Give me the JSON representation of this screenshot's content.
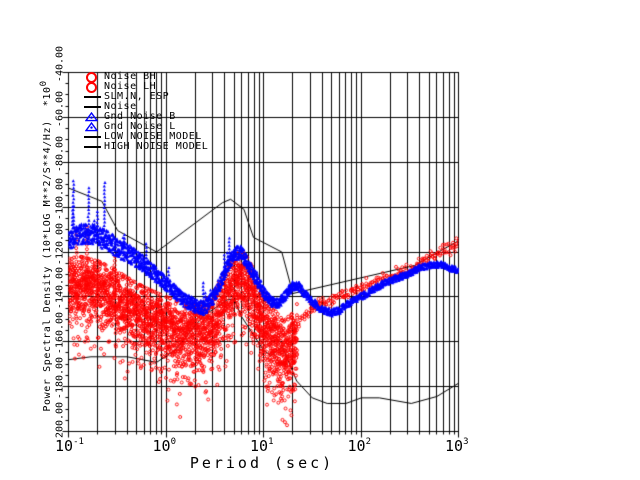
{
  "colors": {
    "background": "#ffffff",
    "frame": "#000000",
    "red_series": "#ff0000",
    "blue_series": "#0000ff",
    "model_line": "#000000"
  },
  "legend": {
    "items": [
      {
        "label": "Noise BH",
        "marker": "circle",
        "color": "#ff0000"
      },
      {
        "label": "Noise LH",
        "marker": "circle",
        "color": "#ff0000"
      },
      {
        "label": "SLM.N, ESP",
        "marker": "line",
        "color": "#000000"
      },
      {
        "label": "Noise",
        "marker": "line",
        "color": "#000000"
      },
      {
        "label": "Gnd Noise B",
        "marker": "triangle",
        "color": "#0000ff"
      },
      {
        "label": "Gnd Noise L",
        "marker": "triangle",
        "color": "#0000ff"
      },
      {
        "label": "LOW NOISE MODEL",
        "marker": "line",
        "color": "#000000"
      },
      {
        "label": "HIGH NOISE MODEL",
        "marker": "line",
        "color": "#000000"
      }
    ]
  },
  "axes": {
    "x": {
      "title": "Period (sec)",
      "scale": "log",
      "min": 0.1,
      "max": 1000,
      "ticks": [
        {
          "base": "10",
          "exp": "-1"
        },
        {
          "base": "10",
          "exp": "0"
        },
        {
          "base": "10",
          "exp": "1"
        },
        {
          "base": "10",
          "exp": "2"
        },
        {
          "base": "10",
          "exp": "3"
        }
      ]
    },
    "y": {
      "title": "Power Spectral Density (10*LOG M**2/S**4/Hz)",
      "scale_base": "*10",
      "scale_exp": "0",
      "min": -200,
      "max": -40,
      "tick_values": [
        -40,
        -60,
        -80,
        -100,
        -120,
        -140,
        -160,
        -180,
        -200
      ],
      "tick_labels": [
        "-40.00",
        "-60.00",
        "-80.00",
        "-100.00",
        "-120.00",
        "-140.00",
        "-160.00",
        "-180.00",
        "-200.00"
      ],
      "grid_values": [
        -60,
        -80,
        -100,
        -120,
        -140,
        -160,
        -180
      ]
    }
  },
  "chart_data": {
    "type": "scatter",
    "xlabel": "Period (sec)",
    "ylabel": "Power Spectral Density (10*LOG M**2/S**4/Hz)",
    "x_scale": "log",
    "xlim": [
      0.1,
      1000
    ],
    "ylim": [
      -200,
      -40
    ],
    "grid": true,
    "legend_position": "top-left",
    "series": [
      {
        "name": "Noise BH / Noise LH",
        "type": "scatter-cloud",
        "color": "#ff0000",
        "marker": "open-circle",
        "center_db_by_period": [
          [
            0.08,
            -134
          ],
          [
            0.1,
            -135
          ],
          [
            0.13,
            -134
          ],
          [
            0.2,
            -136
          ],
          [
            0.3,
            -140
          ],
          [
            0.5,
            -146
          ],
          [
            0.7,
            -149
          ],
          [
            1.0,
            -152
          ],
          [
            1.5,
            -155
          ],
          [
            2.2,
            -156
          ],
          [
            3.0,
            -151
          ],
          [
            4.0,
            -141
          ],
          [
            5.0,
            -133
          ],
          [
            6.0,
            -131
          ],
          [
            7.0,
            -135
          ],
          [
            8.0,
            -141
          ],
          [
            10,
            -150
          ],
          [
            13,
            -158
          ],
          [
            16,
            -163
          ],
          [
            20,
            -159
          ],
          [
            24,
            -151
          ],
          [
            30,
            -146
          ],
          [
            40,
            -142.5
          ],
          [
            50,
            -141
          ],
          [
            70,
            -139
          ],
          [
            100,
            -136
          ],
          [
            150,
            -132.5
          ],
          [
            200,
            -131
          ],
          [
            300,
            -128
          ],
          [
            400,
            -125
          ],
          [
            600,
            -121
          ],
          [
            800,
            -118
          ],
          [
            1000,
            -115.5
          ]
        ],
        "dense_until_period": 22,
        "sigma_db": 6.5,
        "up_clamp_db": 12,
        "down_clamp_db": 16,
        "tail_db": [
          6,
          12
        ],
        "deep_tail_range": [
          9,
          26
        ],
        "deep_tail_db": [
          5,
          13
        ],
        "tight_sigma_db": 1.1,
        "spikes": {
          "pmin": 0.09,
          "pmax": 0.3,
          "prob": 0.1,
          "max_db": 28,
          "cap_db": -100
        }
      },
      {
        "name": "Gnd Noise B / Gnd Noise L",
        "type": "scatter-band",
        "color": "#0000ff",
        "marker": "triangle",
        "center_db_by_period": [
          [
            0.08,
            -116
          ],
          [
            0.1,
            -115
          ],
          [
            0.13,
            -112
          ],
          [
            0.18,
            -112
          ],
          [
            0.25,
            -115
          ],
          [
            0.35,
            -119
          ],
          [
            0.5,
            -123
          ],
          [
            0.7,
            -128
          ],
          [
            1.0,
            -134
          ],
          [
            1.5,
            -141
          ],
          [
            2.0,
            -144
          ],
          [
            2.5,
            -145
          ],
          [
            3.2,
            -139
          ],
          [
            4.0,
            -129
          ],
          [
            5.0,
            -121
          ],
          [
            5.8,
            -120
          ],
          [
            6.5,
            -123
          ],
          [
            7.5,
            -128
          ],
          [
            8.5,
            -132
          ],
          [
            10,
            -138
          ],
          [
            12,
            -142
          ],
          [
            14,
            -143
          ],
          [
            17,
            -139
          ],
          [
            20,
            -135
          ],
          [
            23,
            -135
          ],
          [
            27,
            -139
          ],
          [
            33,
            -143
          ],
          [
            40,
            -146
          ],
          [
            50,
            -147
          ],
          [
            60,
            -146
          ],
          [
            80,
            -142
          ],
          [
            100,
            -140
          ],
          [
            130,
            -137
          ],
          [
            170,
            -134
          ],
          [
            220,
            -132
          ],
          [
            300,
            -130
          ],
          [
            400,
            -127
          ],
          [
            500,
            -126
          ],
          [
            650,
            -125.5
          ],
          [
            800,
            -127
          ],
          [
            950,
            -128
          ]
        ],
        "half_width_db": [
          [
            0.08,
            4.5
          ],
          [
            0.3,
            4.5
          ],
          [
            1,
            3.2
          ],
          [
            8,
            3.0
          ],
          [
            12,
            2.2
          ],
          [
            30,
            2.0
          ],
          [
            60,
            1.6
          ],
          [
            1000,
            1.3
          ]
        ],
        "spike_regions": [
          {
            "pmin": 0.09,
            "pmax": 0.3,
            "prob": 0.17,
            "max_db": 30,
            "cap_db": -88
          },
          {
            "pmin": 0.3,
            "pmax": 6,
            "prob": 0.07,
            "max_db": 12,
            "cap_db": -100
          }
        ]
      },
      {
        "name": "LOW NOISE MODEL",
        "type": "line",
        "color": "#000000",
        "points": [
          [
            0.1,
            -168.0
          ],
          [
            0.17,
            -166.7
          ],
          [
            0.4,
            -166.7
          ],
          [
            0.8,
            -169.2
          ],
          [
            1.24,
            -163.7
          ],
          [
            2.4,
            -148.6
          ],
          [
            4.3,
            -141.1
          ],
          [
            5.0,
            -141.1
          ],
          [
            6.0,
            -149.0
          ],
          [
            10.0,
            -163.8
          ],
          [
            12.0,
            -166.2
          ],
          [
            15.6,
            -162.1
          ],
          [
            21.9,
            -177.5
          ],
          [
            31.6,
            -185.0
          ],
          [
            45.0,
            -187.5
          ],
          [
            70.0,
            -187.5
          ],
          [
            101.0,
            -185.0
          ],
          [
            154.0,
            -185.0
          ],
          [
            328.0,
            -187.5
          ],
          [
            600.0,
            -184.4
          ],
          [
            1000.0,
            -178.5
          ]
        ]
      },
      {
        "name": "HIGH NOISE MODEL",
        "type": "line",
        "color": "#000000",
        "points": [
          [
            0.1,
            -91.5
          ],
          [
            0.22,
            -97.4
          ],
          [
            0.32,
            -110.5
          ],
          [
            0.8,
            -120.0
          ],
          [
            3.8,
            -98.0
          ],
          [
            4.6,
            -96.5
          ],
          [
            6.3,
            -101.0
          ],
          [
            7.9,
            -113.5
          ],
          [
            15.4,
            -120.0
          ],
          [
            20.0,
            -138.5
          ],
          [
            354.8,
            -126.0
          ],
          [
            1000.0,
            -115.0
          ]
        ]
      }
    ]
  }
}
